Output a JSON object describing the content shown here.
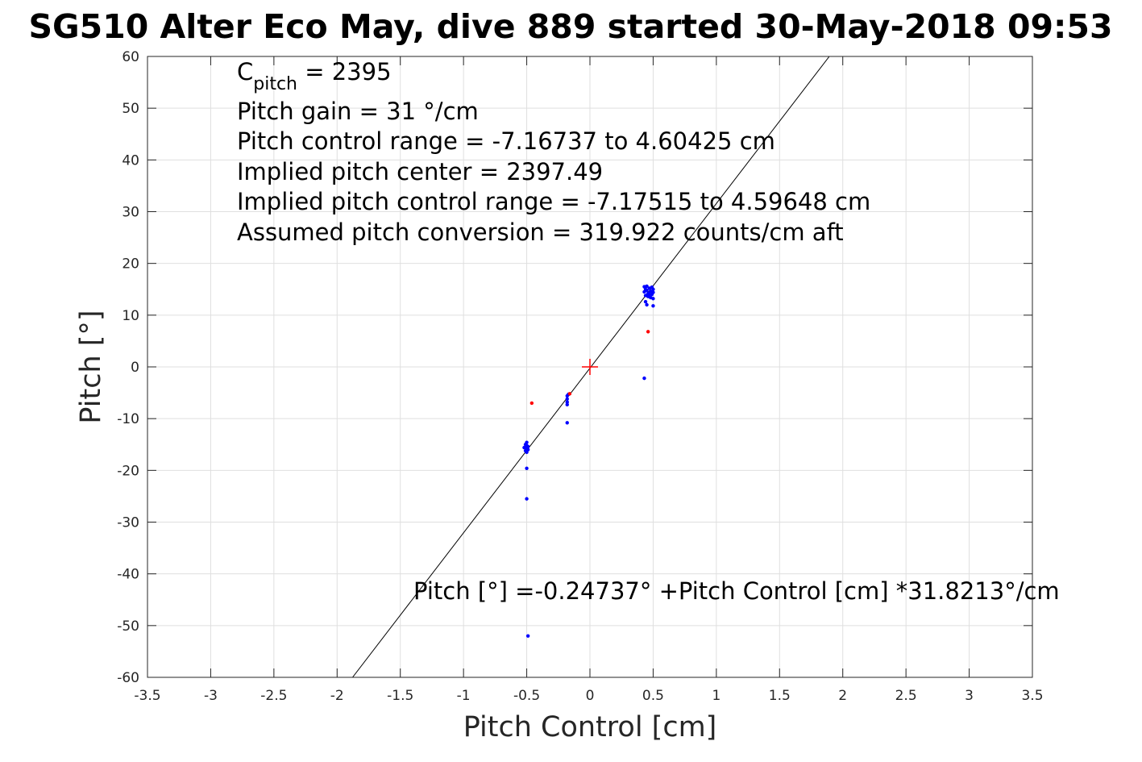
{
  "chart_data": {
    "type": "scatter",
    "title": "SG510 Alter Eco May, dive 889 started 30-May-2018 09:53",
    "xlabel": "Pitch Control [cm]",
    "ylabel": "Pitch [°]",
    "xlim": [
      -3.5,
      3.5
    ],
    "ylim": [
      -60,
      60
    ],
    "xticks": [
      -3.5,
      -3,
      -2.5,
      -2,
      -1.5,
      -1,
      -0.5,
      0,
      0.5,
      1,
      1.5,
      2,
      2.5,
      3,
      3.5
    ],
    "xtick_labels": [
      "-3.5",
      "-3",
      "-2.5",
      "-2",
      "-1.5",
      "-1",
      "-0.5",
      "0",
      "0.5",
      "1",
      "1.5",
      "2",
      "2.5",
      "3",
      "3.5"
    ],
    "yticks": [
      -60,
      -50,
      -40,
      -30,
      -20,
      -10,
      0,
      10,
      20,
      30,
      40,
      50,
      60
    ],
    "ytick_labels": [
      "-60",
      "-50",
      "-40",
      "-30",
      "-20",
      "-10",
      "0",
      "10",
      "20",
      "30",
      "40",
      "50",
      "60"
    ],
    "grid": true,
    "annotations": {
      "cpitch_main": "C",
      "cpitch_sub": "pitch",
      "cpitch_value": " = 2395",
      "lines": [
        "Pitch gain = 31 °/cm",
        "Pitch control range = -7.16737 to 4.60425 cm",
        "Implied pitch center = 2397.49",
        "Implied pitch control range = -7.17515 to 4.59648 cm",
        "Assumed pitch conversion = 319.922 counts/cm aft"
      ],
      "fit_equation": "Pitch [°] =-0.24737° +Pitch Control [cm] *31.8213°/cm"
    },
    "fit_line": {
      "intercept": -0.24737,
      "slope": 31.8213,
      "color": "#000000"
    },
    "center_marker": {
      "x": 0,
      "y": 0,
      "symbol": "+",
      "color": "#ff0000"
    },
    "series": [
      {
        "color": "#0000ff",
        "points": [
          [
            0.43,
            15.5
          ],
          [
            0.44,
            15.0
          ],
          [
            0.45,
            14.8
          ],
          [
            0.46,
            14.2
          ],
          [
            0.47,
            15.2
          ],
          [
            0.48,
            14.6
          ],
          [
            0.49,
            14.0
          ],
          [
            0.5,
            15.0
          ],
          [
            0.44,
            13.8
          ],
          [
            0.46,
            13.6
          ],
          [
            0.48,
            13.4
          ],
          [
            0.5,
            14.4
          ],
          [
            0.43,
            14.5
          ],
          [
            0.45,
            15.6
          ],
          [
            0.47,
            14.0
          ],
          [
            0.49,
            15.4
          ],
          [
            0.5,
            13.2
          ],
          [
            0.44,
            12.6
          ],
          [
            0.45,
            12.0
          ],
          [
            0.5,
            11.8
          ],
          [
            0.43,
            -2.2
          ],
          [
            -0.5,
            -14.6
          ],
          [
            -0.51,
            -15.0
          ],
          [
            -0.49,
            -15.4
          ],
          [
            -0.5,
            -15.8
          ],
          [
            -0.51,
            -16.2
          ],
          [
            -0.49,
            -16.0
          ],
          [
            -0.5,
            -15.2
          ],
          [
            -0.52,
            -15.6
          ],
          [
            -0.5,
            -16.5
          ],
          [
            -0.5,
            -19.6
          ],
          [
            -0.5,
            -25.5
          ],
          [
            -0.49,
            -52.0
          ],
          [
            -0.18,
            -5.6
          ],
          [
            -0.18,
            -6.2
          ],
          [
            -0.18,
            -6.8
          ],
          [
            -0.18,
            -7.3
          ],
          [
            -0.17,
            -5.3
          ],
          [
            -0.18,
            -10.8
          ]
        ]
      },
      {
        "color": "#ff0000",
        "points": [
          [
            -0.46,
            -7.0
          ],
          [
            0.46,
            6.8
          ],
          [
            -0.16,
            -5.2
          ]
        ]
      }
    ]
  }
}
